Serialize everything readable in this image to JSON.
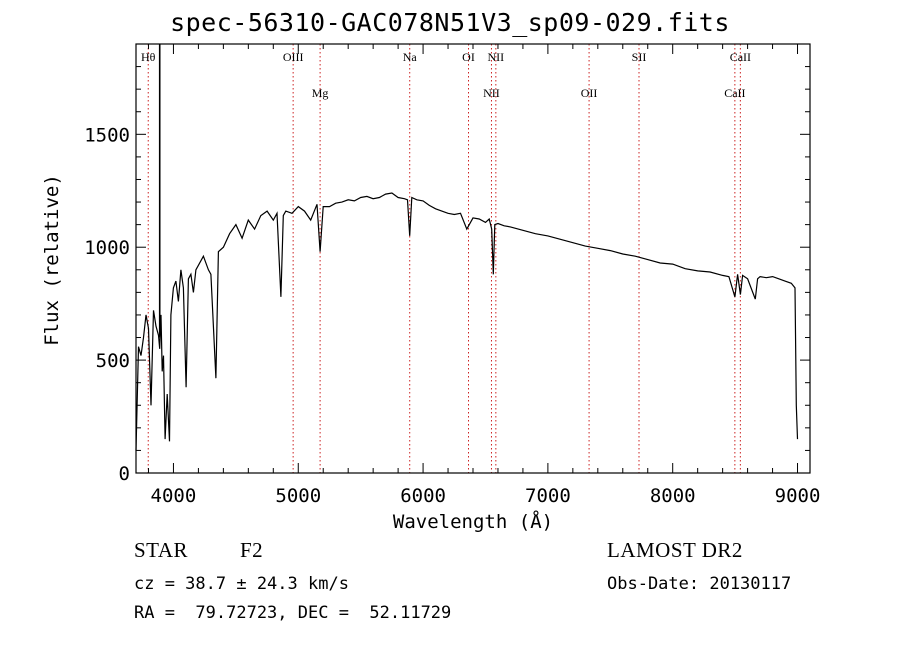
{
  "chart_data": {
    "type": "line",
    "title": "spec-56310-GAC078N51V3_sp09-029.fits",
    "xlabel": "Wavelength (Å)",
    "ylabel": "Flux (relative)",
    "xlim": [
      3700,
      9100
    ],
    "ylim": [
      0,
      1900
    ],
    "xticks": [
      4000,
      5000,
      6000,
      7000,
      8000,
      9000
    ],
    "yticks": [
      0,
      500,
      1000,
      1500
    ],
    "grid": false,
    "lines": [
      {
        "label": "Hθ",
        "wavelength": 3798,
        "row": "upper"
      },
      {
        "label": "OIII",
        "wavelength": 4959,
        "row": "upper"
      },
      {
        "label": "Mg",
        "wavelength": 5175,
        "row": "lower"
      },
      {
        "label": "Na",
        "wavelength": 5893,
        "row": "upper"
      },
      {
        "label": "OI",
        "wavelength": 6364,
        "row": "upper"
      },
      {
        "label": "NII",
        "wavelength": 6548,
        "row": "lower"
      },
      {
        "label": "NII",
        "wavelength": 6583,
        "row": "upper"
      },
      {
        "label": "OII",
        "wavelength": 7330,
        "row": "lower"
      },
      {
        "label": "SII",
        "wavelength": 7730,
        "row": "upper"
      },
      {
        "label": "CaII",
        "wavelength": 8498,
        "row": "lower"
      },
      {
        "label": "CaII",
        "wavelength": 8542,
        "row": "upper"
      }
    ],
    "series": [
      {
        "x": [
          3700,
          3720,
          3740,
          3760,
          3780,
          3800,
          3820,
          3840,
          3860,
          3880,
          3890,
          3900,
          3910,
          3920,
          3933,
          3950,
          3968,
          3980,
          4000,
          4020,
          4040,
          4060,
          4080,
          4101,
          4120,
          4140,
          4160,
          4180,
          4200,
          4240,
          4280,
          4300,
          4340,
          4360,
          4400,
          4450,
          4500,
          4550,
          4600,
          4650,
          4700,
          4750,
          4800,
          4830,
          4861,
          4880,
          4900,
          4950,
          5000,
          5050,
          5100,
          5150,
          5175,
          5200,
          5250,
          5300,
          5350,
          5400,
          5450,
          5500,
          5550,
          5600,
          5650,
          5700,
          5750,
          5800,
          5850,
          5875,
          5893,
          5910,
          5950,
          6000,
          6050,
          6100,
          6150,
          6200,
          6250,
          6300,
          6350,
          6400,
          6450,
          6500,
          6530,
          6550,
          6563,
          6575,
          6600,
          6650,
          6700,
          6800,
          6900,
          7000,
          7100,
          7200,
          7300,
          7400,
          7500,
          7600,
          7700,
          7800,
          7900,
          8000,
          8100,
          8200,
          8300,
          8400,
          8450,
          8498,
          8520,
          8542,
          8560,
          8600,
          8662,
          8680,
          8700,
          8750,
          8800,
          8850,
          8900,
          8950,
          8980,
          8990,
          9000
        ],
        "y": [
          100,
          560,
          520,
          600,
          700,
          640,
          300,
          720,
          650,
          610,
          550,
          700,
          450,
          520,
          150,
          350,
          140,
          700,
          820,
          850,
          760,
          900,
          820,
          380,
          860,
          880,
          800,
          900,
          920,
          960,
          900,
          880,
          420,
          980,
          1000,
          1060,
          1100,
          1040,
          1120,
          1080,
          1140,
          1160,
          1120,
          1150,
          780,
          1140,
          1160,
          1150,
          1180,
          1160,
          1120,
          1190,
          980,
          1180,
          1180,
          1195,
          1200,
          1210,
          1205,
          1220,
          1225,
          1215,
          1220,
          1235,
          1240,
          1220,
          1215,
          1210,
          1050,
          1220,
          1210,
          1205,
          1185,
          1170,
          1160,
          1150,
          1145,
          1150,
          1080,
          1130,
          1125,
          1110,
          1125,
          1080,
          880,
          1100,
          1105,
          1095,
          1090,
          1075,
          1060,
          1050,
          1035,
          1020,
          1005,
          995,
          985,
          970,
          960,
          945,
          930,
          925,
          905,
          895,
          890,
          875,
          870,
          780,
          880,
          790,
          875,
          860,
          770,
          860,
          870,
          865,
          870,
          860,
          850,
          840,
          820,
          300,
          150
        ]
      }
    ]
  },
  "info": {
    "object_class": "STAR",
    "subclass": "F2",
    "cz": "cz = 38.7 ± 24.3 km/s",
    "coords": "RA =  79.72723, DEC =  52.11729",
    "survey": "LAMOST DR2",
    "obs_date": "Obs-Date: 20130117"
  }
}
